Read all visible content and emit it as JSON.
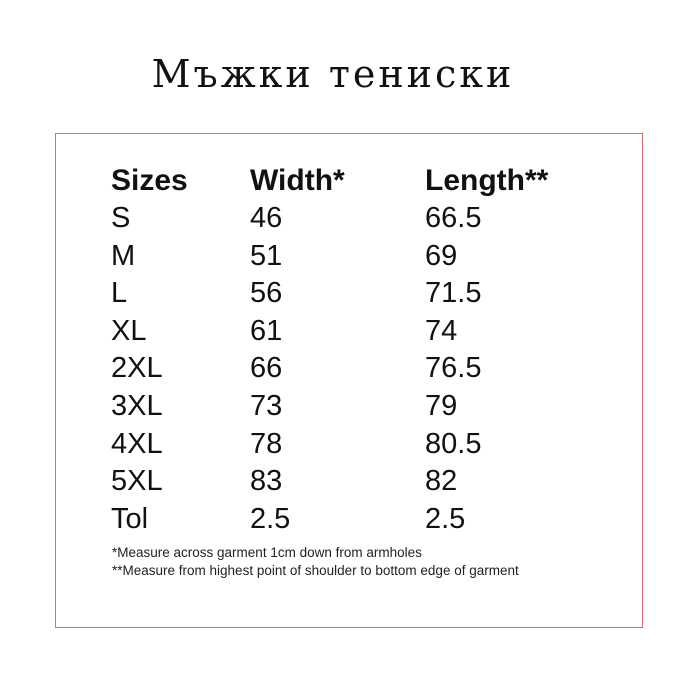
{
  "title": "Мъжки тениски",
  "table": {
    "headers": [
      "Sizes",
      "Width*",
      "Length**"
    ],
    "rows": [
      [
        "S",
        "46",
        "66.5"
      ],
      [
        "M",
        "51",
        "69"
      ],
      [
        "L",
        "56",
        "71.5"
      ],
      [
        "XL",
        "61",
        "74"
      ],
      [
        "2XL",
        "66",
        "76.5"
      ],
      [
        "3XL",
        "73",
        "79"
      ],
      [
        "4XL",
        "78",
        "80.5"
      ],
      [
        "5XL",
        "83",
        "82"
      ],
      [
        "Tol",
        "2.5",
        "2.5"
      ]
    ]
  },
  "notes": [
    "*Measure across garment 1cm down from armholes",
    "**Measure from highest point of shoulder to bottom edge of garment"
  ],
  "colors": {
    "border": "#e06a6a",
    "text": "#111111"
  }
}
